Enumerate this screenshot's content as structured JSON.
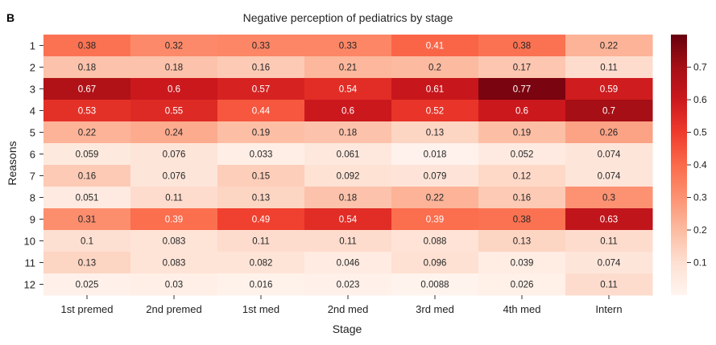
{
  "panel_label": "B",
  "chart_data": {
    "type": "heatmap",
    "title": "Negative perception of pediatrics by stage",
    "xlabel": "Stage",
    "ylabel": "Reasons",
    "x_categories": [
      "1st premed",
      "2nd premed",
      "1st med",
      "2nd med",
      "3rd med",
      "4th med",
      "Intern"
    ],
    "y_categories": [
      "1",
      "2",
      "3",
      "4",
      "5",
      "6",
      "7",
      "8",
      "9",
      "10",
      "11",
      "12"
    ],
    "values": [
      [
        0.38,
        0.32,
        0.33,
        0.33,
        0.41,
        0.38,
        0.22
      ],
      [
        0.18,
        0.18,
        0.16,
        0.21,
        0.2,
        0.17,
        0.11
      ],
      [
        0.67,
        0.6,
        0.57,
        0.54,
        0.61,
        0.77,
        0.59
      ],
      [
        0.53,
        0.55,
        0.44,
        0.6,
        0.52,
        0.6,
        0.7
      ],
      [
        0.22,
        0.24,
        0.19,
        0.18,
        0.13,
        0.19,
        0.26
      ],
      [
        0.059,
        0.076,
        0.033,
        0.061,
        0.018,
        0.052,
        0.074
      ],
      [
        0.16,
        0.076,
        0.15,
        0.092,
        0.079,
        0.12,
        0.074
      ],
      [
        0.051,
        0.11,
        0.13,
        0.18,
        0.22,
        0.16,
        0.3
      ],
      [
        0.31,
        0.39,
        0.49,
        0.54,
        0.39,
        0.38,
        0.63
      ],
      [
        0.1,
        0.083,
        0.11,
        0.11,
        0.088,
        0.13,
        0.11
      ],
      [
        0.13,
        0.083,
        0.082,
        0.046,
        0.096,
        0.039,
        0.074
      ],
      [
        0.025,
        0.03,
        0.016,
        0.023,
        0.0088,
        0.026,
        0.11
      ]
    ],
    "labels": [
      [
        "0.38",
        "0.32",
        "0.33",
        "0.33",
        "0.41",
        "0.38",
        "0.22"
      ],
      [
        "0.18",
        "0.18",
        "0.16",
        "0.21",
        "0.2",
        "0.17",
        "0.11"
      ],
      [
        "0.67",
        "0.6",
        "0.57",
        "0.54",
        "0.61",
        "0.77",
        "0.59"
      ],
      [
        "0.53",
        "0.55",
        "0.44",
        "0.6",
        "0.52",
        "0.6",
        "0.7"
      ],
      [
        "0.22",
        "0.24",
        "0.19",
        "0.18",
        "0.13",
        "0.19",
        "0.26"
      ],
      [
        "0.059",
        "0.076",
        "0.033",
        "0.061",
        "0.018",
        "0.052",
        "0.074"
      ],
      [
        "0.16",
        "0.076",
        "0.15",
        "0.092",
        "0.079",
        "0.12",
        "0.074"
      ],
      [
        "0.051",
        "0.11",
        "0.13",
        "0.18",
        "0.22",
        "0.16",
        "0.3"
      ],
      [
        "0.31",
        "0.39",
        "0.49",
        "0.54",
        "0.39",
        "0.38",
        "0.63"
      ],
      [
        "0.1",
        "0.083",
        "0.11",
        "0.11",
        "0.088",
        "0.13",
        "0.11"
      ],
      [
        "0.13",
        "0.083",
        "0.082",
        "0.046",
        "0.096",
        "0.039",
        "0.074"
      ],
      [
        "0.025",
        "0.03",
        "0.016",
        "0.023",
        "0.0088",
        "0.026",
        "0.11"
      ]
    ],
    "color_range": [
      0,
      0.8
    ],
    "colorbar_ticks": [
      "0.1",
      "0.2",
      "0.3",
      "0.4",
      "0.5",
      "0.6",
      "0.7"
    ],
    "colormap": "Reds",
    "colormap_stops": [
      "#fff5f0",
      "#fee0d2",
      "#fcbba1",
      "#fc9272",
      "#fb6a4a",
      "#ef3b2c",
      "#cb181d",
      "#a50f15",
      "#67000d"
    ],
    "grid": false,
    "colorbar_position": "right"
  }
}
